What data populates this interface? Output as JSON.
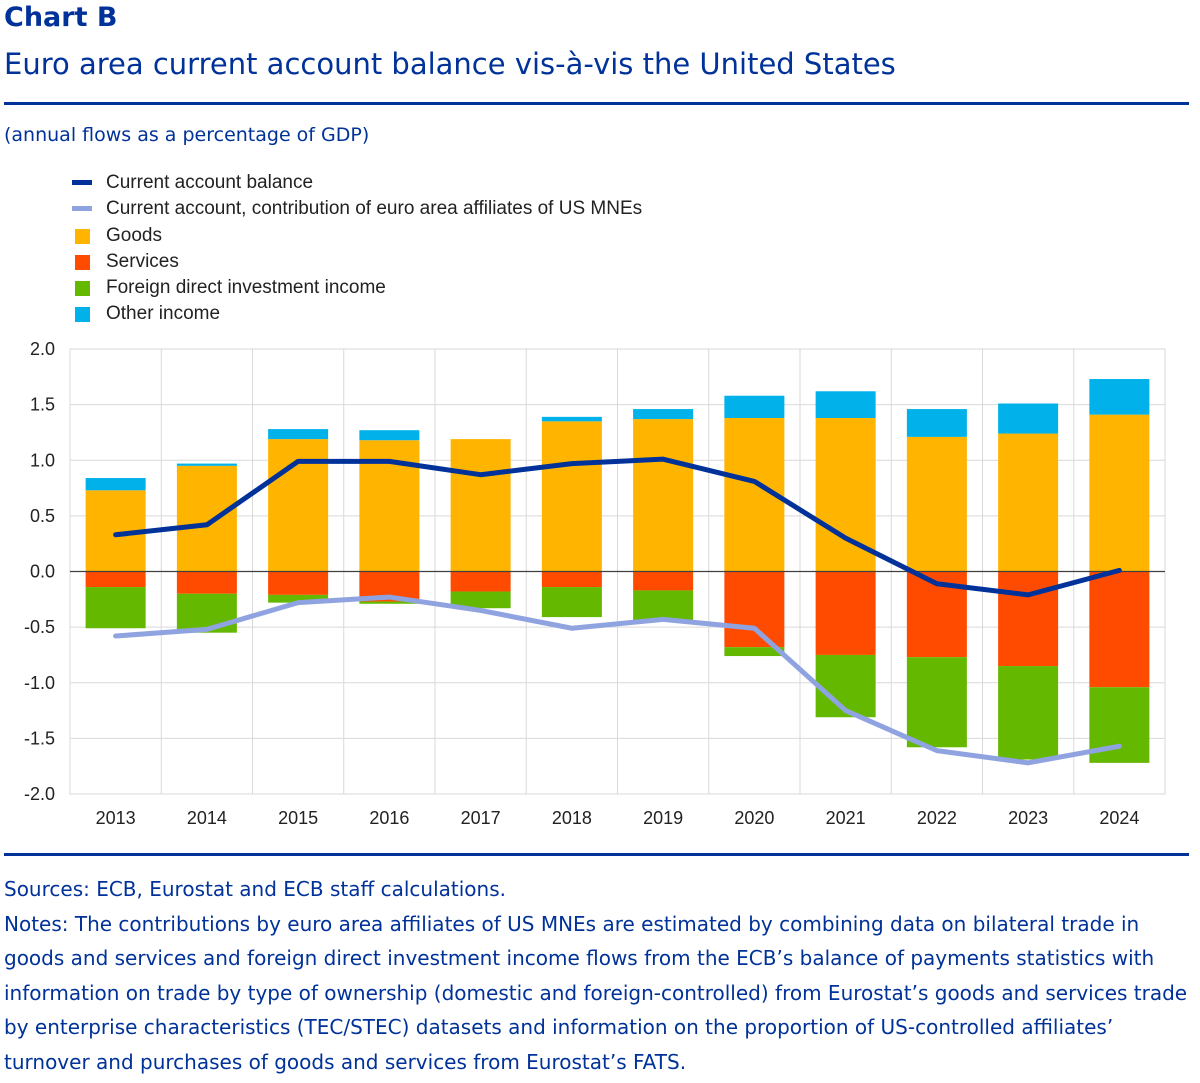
{
  "header": {
    "label": "Chart B",
    "title": "Euro area current account balance vis-à-vis the United States",
    "subtitle": "(annual flows as a percentage of GDP)"
  },
  "legend": [
    {
      "name": "Current account balance",
      "kind": "line",
      "color": "#003299"
    },
    {
      "name": "Current account, contribution of euro area affiliates of US MNEs",
      "kind": "line",
      "color": "#8fa3e0"
    },
    {
      "name": "Goods",
      "kind": "box",
      "color": "#ffb400"
    },
    {
      "name": "Services",
      "kind": "box",
      "color": "#ff4b00"
    },
    {
      "name": "Foreign direct investment income",
      "kind": "box",
      "color": "#65b800"
    },
    {
      "name": "Other income",
      "kind": "box",
      "color": "#00b1ea"
    }
  ],
  "chart_data": {
    "type": "bar",
    "stacked": true,
    "categories": [
      "2013",
      "2014",
      "2015",
      "2016",
      "2017",
      "2018",
      "2019",
      "2020",
      "2021",
      "2022",
      "2023",
      "2024"
    ],
    "ylim": [
      -2.0,
      2.0
    ],
    "yticks": [
      "2.0",
      "1.5",
      "1.0",
      "0.5",
      "0.0",
      "-0.5",
      "-1.0",
      "-1.5",
      "-2.0"
    ],
    "grid": true,
    "legend_position": "top-left",
    "series": [
      {
        "name": "Goods",
        "kind": "bar",
        "color": "#ffb400",
        "values": [
          0.73,
          0.95,
          1.19,
          1.18,
          1.19,
          1.35,
          1.37,
          1.38,
          1.38,
          1.21,
          1.24,
          1.41
        ]
      },
      {
        "name": "Services",
        "kind": "bar",
        "color": "#ff4b00",
        "values": [
          -0.14,
          -0.2,
          -0.21,
          -0.27,
          -0.18,
          -0.14,
          -0.17,
          -0.68,
          -0.75,
          -0.77,
          -0.85,
          -1.04
        ]
      },
      {
        "name": "Foreign direct investment income",
        "kind": "bar",
        "color": "#65b800",
        "values": [
          -0.37,
          -0.35,
          -0.07,
          -0.02,
          -0.15,
          -0.27,
          -0.27,
          -0.08,
          -0.56,
          -0.81,
          -0.84,
          -0.68
        ]
      },
      {
        "name": "Other income",
        "kind": "bar",
        "color": "#00b1ea",
        "values": [
          0.11,
          0.02,
          0.09,
          0.09,
          0.0,
          0.04,
          0.09,
          0.2,
          0.24,
          0.25,
          0.27,
          0.32
        ]
      },
      {
        "name": "Current account balance",
        "kind": "line",
        "color": "#003299",
        "values": [
          0.33,
          0.42,
          0.99,
          0.99,
          0.87,
          0.97,
          1.01,
          0.81,
          0.3,
          -0.11,
          -0.21,
          0.01
        ]
      },
      {
        "name": "Current account, contribution of euro area affiliates of US MNEs",
        "kind": "line",
        "color": "#8fa3e0",
        "values": [
          -0.58,
          -0.52,
          -0.28,
          -0.23,
          -0.35,
          -0.51,
          -0.43,
          -0.51,
          -1.25,
          -1.61,
          -1.72,
          -1.57
        ]
      }
    ]
  },
  "footer": {
    "sources": "Sources: ECB, Eurostat and ECB staff calculations.",
    "notes": "Notes: The contributions by euro area affiliates of US MNEs are estimated by combining data on bilateral trade in goods and services and foreign direct investment income flows from the ECB’s balance of payments statistics with information on trade by type of ownership (domestic and foreign-controlled) from Eurostat’s goods and services trade by enterprise characteristics (TEC/STEC) datasets and information on the proportion of US-controlled affiliates’ turnover and purchases of goods and services from Eurostat’s FATS."
  }
}
